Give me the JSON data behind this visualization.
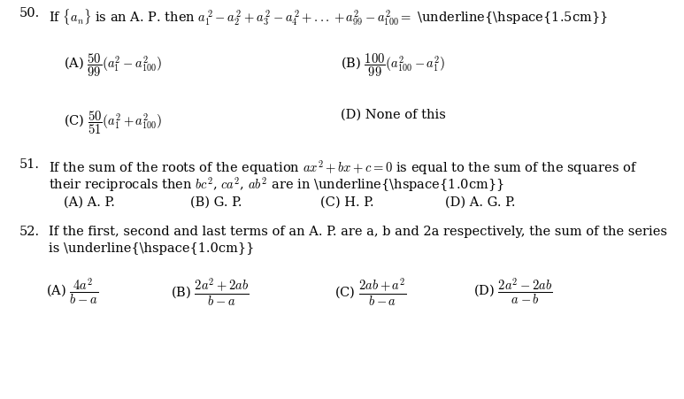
{
  "background_color": "#ffffff",
  "figsize": [
    7.73,
    4.51
  ],
  "dpi": 100,
  "font_size_question": 10.5,
  "font_size_option": 10.5,
  "text_color": "#000000",
  "q50_number": "50.",
  "q50_text": "If $\\{a_n\\}$ is an A. P. then $a_1^{\\,2} - a_2^{\\,2} + a_3^{\\,2} - a_4^{\\,2} + ... + a_{99}^2 - a_{100}^2 =$ \\underline{\\hspace{1.5cm}}",
  "q50_optA": "(A) $\\dfrac{50}{99}\\left(a_1^2 - a_{100}^2\\right)$",
  "q50_optB": "(B) $\\dfrac{100}{99}\\left(a_{100}^2 - a_1^2\\right)$",
  "q50_optC": "(C) $\\dfrac{50}{51}\\left(a_1^2 + a_{100}^2\\right)$",
  "q50_optD": "(D) None of this",
  "q51_number": "51.",
  "q51_text1": "If the sum of the roots of the equation $ax^2 + bx + c = 0$ is equal to the sum of the squares of",
  "q51_text2": "their reciprocals then $bc^2$, $ca^2$, $ab^2$ are in \\underline{\\hspace{1.0cm}}",
  "q51_optA": "(A) A. P.",
  "q51_optB": "(B) G. P.",
  "q51_optC": "(C) H. P.",
  "q51_optD": "(D) A. G. P.",
  "q52_number": "52.",
  "q52_text1": "If the first, second and last terms of an A. P. are a, b and 2a respectively, the sum of the series",
  "q52_text2": "is \\underline{\\hspace{1.0cm}}",
  "q52_optA": "(A) $\\dfrac{4a^2}{b-a}$",
  "q52_optB": "(B) $\\dfrac{2a^2+2ab}{b-a}$",
  "q52_optC": "(C) $\\dfrac{2ab+a^2}{b-a}$",
  "q52_optD": "(D) $\\dfrac{2a^2-2ab}{a-b}$"
}
